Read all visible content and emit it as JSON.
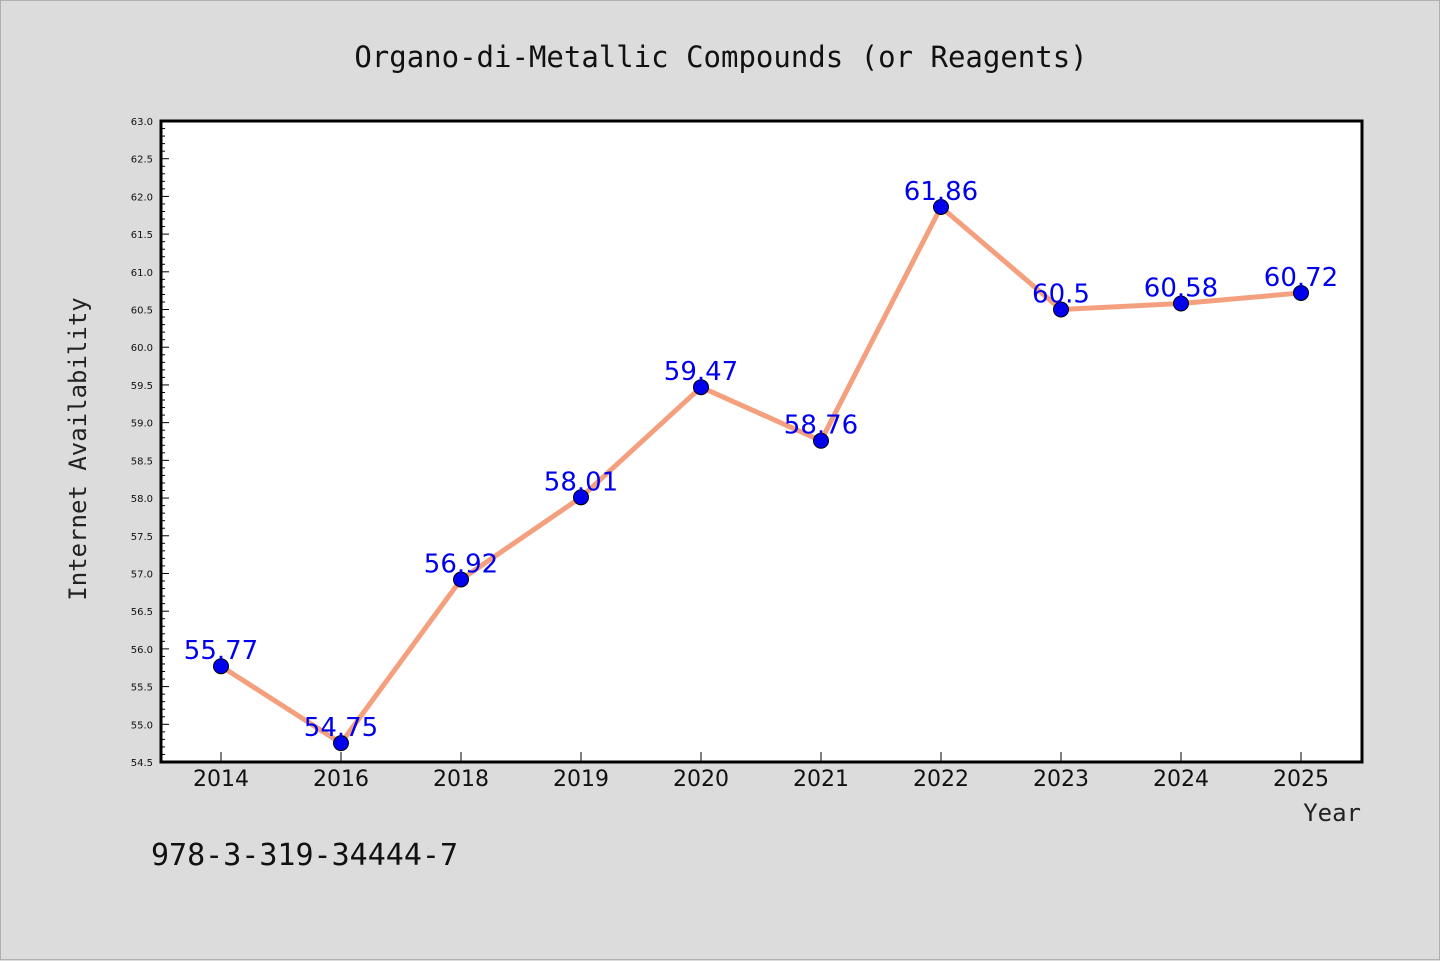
{
  "footer": {
    "code": "978-3-319-34444-7"
  },
  "colors": {
    "line": "#f4a07f",
    "marker": "#0000ee",
    "label": "#0000ee",
    "background": "#dcdcdc",
    "plot_bg": "#ffffff"
  },
  "chart_data": {
    "type": "line",
    "title": "Organo-di-Metallic Compounds (or Reagents)",
    "xlabel": "Year",
    "ylabel": "Internet Availability",
    "categories": [
      "2014",
      "2016",
      "2018",
      "2019",
      "2020",
      "2021",
      "2022",
      "2023",
      "2024",
      "2025"
    ],
    "values": [
      55.77,
      54.75,
      56.92,
      58.01,
      59.47,
      58.76,
      61.86,
      60.5,
      60.58,
      60.72
    ],
    "data_labels": [
      "55.77",
      "54.75",
      "56.92",
      "58.01",
      "59.47",
      "58.76",
      "61.86",
      "60.5",
      "60.58",
      "60.72"
    ],
    "ylim": [
      54.5,
      63.0
    ],
    "yticks": [
      "54.5",
      "55.0",
      "55.5",
      "56.0",
      "56.5",
      "57.0",
      "57.5",
      "58.0",
      "58.5",
      "59.0",
      "59.5",
      "60.0",
      "60.5",
      "61.0",
      "61.5",
      "62.0",
      "62.5",
      "63.0"
    ],
    "grid": false,
    "legend": "none"
  }
}
